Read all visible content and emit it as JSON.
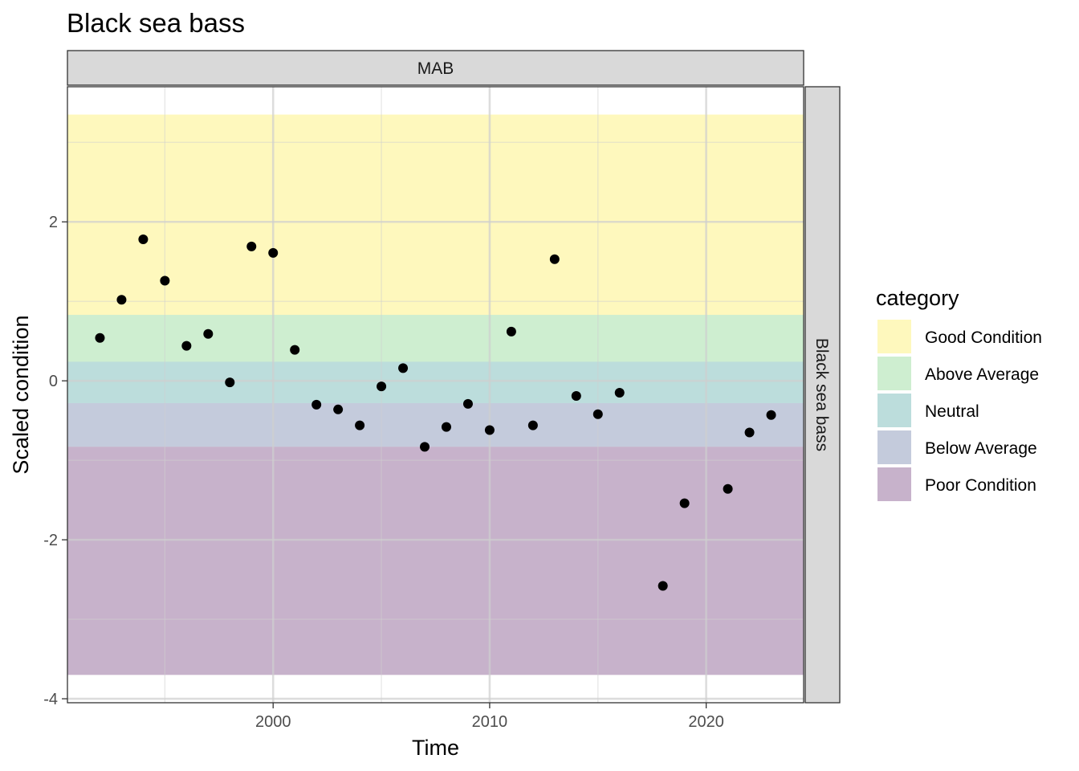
{
  "chart_data": {
    "type": "scatter",
    "title": "Black sea bass",
    "facet_top": "MAB",
    "facet_right": "Black sea bass",
    "xlabel": "Time",
    "ylabel": "Scaled condition",
    "xlim": [
      1990.5,
      2024.5
    ],
    "ylim": [
      -4.05,
      3.7
    ],
    "x_ticks": [
      2000,
      2010,
      2020
    ],
    "y_ticks": [
      -4,
      -2,
      0,
      2
    ],
    "grid": true,
    "legend": {
      "title": "category",
      "placement": "right",
      "items": [
        {
          "label": "Good Condition",
          "color": "#FDE725"
        },
        {
          "label": "Above Average",
          "color": "#5DC863"
        },
        {
          "label": "Neutral",
          "color": "#21908C"
        },
        {
          "label": "Below Average",
          "color": "#3B528B"
        },
        {
          "label": "Poor Condition",
          "color": "#440154"
        }
      ]
    },
    "bands": [
      {
        "category": "Good Condition",
        "ymin": 0.83,
        "ymax": 3.35
      },
      {
        "category": "Above Average",
        "ymin": 0.24,
        "ymax": 0.83
      },
      {
        "category": "Neutral",
        "ymin": -0.28,
        "ymax": 0.24
      },
      {
        "category": "Below Average",
        "ymin": -0.83,
        "ymax": -0.28
      },
      {
        "category": "Poor Condition",
        "ymin": -3.7,
        "ymax": -0.83
      }
    ],
    "band_opacity": 0.3,
    "points": [
      {
        "x": 1992,
        "y": 0.54
      },
      {
        "x": 1993,
        "y": 1.02
      },
      {
        "x": 1994,
        "y": 1.78
      },
      {
        "x": 1995,
        "y": 1.26
      },
      {
        "x": 1996,
        "y": 0.44
      },
      {
        "x": 1997,
        "y": 0.59
      },
      {
        "x": 1998,
        "y": -0.02
      },
      {
        "x": 1999,
        "y": 1.69
      },
      {
        "x": 2000,
        "y": 1.61
      },
      {
        "x": 2001,
        "y": 0.39
      },
      {
        "x": 2002,
        "y": -0.3
      },
      {
        "x": 2003,
        "y": -0.36
      },
      {
        "x": 2004,
        "y": -0.56
      },
      {
        "x": 2005,
        "y": -0.07
      },
      {
        "x": 2006,
        "y": 0.16
      },
      {
        "x": 2007,
        "y": -0.83
      },
      {
        "x": 2008,
        "y": -0.58
      },
      {
        "x": 2009,
        "y": -0.29
      },
      {
        "x": 2010,
        "y": -0.62
      },
      {
        "x": 2011,
        "y": 0.62
      },
      {
        "x": 2012,
        "y": -0.56
      },
      {
        "x": 2013,
        "y": 1.53
      },
      {
        "x": 2014,
        "y": -0.19
      },
      {
        "x": 2015,
        "y": -0.42
      },
      {
        "x": 2016,
        "y": -0.15
      },
      {
        "x": 2018,
        "y": -2.58
      },
      {
        "x": 2019,
        "y": -1.54
      },
      {
        "x": 2021,
        "y": -1.36
      },
      {
        "x": 2022,
        "y": -0.65
      },
      {
        "x": 2023,
        "y": -0.43
      }
    ],
    "point_color": "#000000"
  }
}
